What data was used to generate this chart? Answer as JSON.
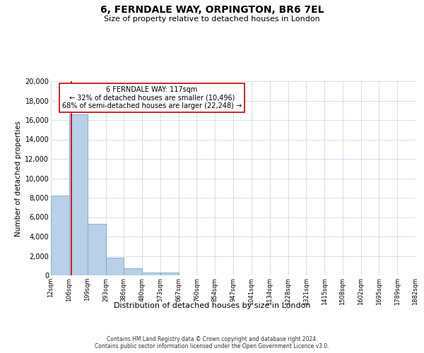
{
  "title": "6, FERNDALE WAY, ORPINGTON, BR6 7EL",
  "subtitle": "Size of property relative to detached houses in London",
  "xlabel": "Distribution of detached houses by size in London",
  "ylabel": "Number of detached properties",
  "bin_edges": [
    12,
    106,
    199,
    293,
    386,
    480,
    573,
    667,
    760,
    854,
    947,
    1041,
    1134,
    1228,
    1321,
    1415,
    1508,
    1602,
    1695,
    1789,
    1882
  ],
  "bar_heights": [
    8200,
    16600,
    5300,
    1800,
    750,
    300,
    300,
    0,
    0,
    0,
    0,
    0,
    0,
    0,
    0,
    0,
    0,
    0,
    0,
    0
  ],
  "bar_color": "#b8d0e8",
  "bar_edgecolor": "#7aaaca",
  "property_size": 117,
  "property_line_color": "#cc0000",
  "annotation_text": "6 FERNDALE WAY: 117sqm\n← 32% of detached houses are smaller (10,496)\n68% of semi-detached houses are larger (22,248) →",
  "annotation_box_color": "#ffffff",
  "annotation_box_edgecolor": "#cc0000",
  "ylim": [
    0,
    20000
  ],
  "yticks": [
    0,
    2000,
    4000,
    6000,
    8000,
    10000,
    12000,
    14000,
    16000,
    18000,
    20000
  ],
  "footer_line1": "Contains HM Land Registry data © Crown copyright and database right 2024.",
  "footer_line2": "Contains public sector information licensed under the Open Government Licence v3.0.",
  "background_color": "#ffffff",
  "plot_background_color": "#ffffff",
  "grid_color": "#d0d8e8"
}
